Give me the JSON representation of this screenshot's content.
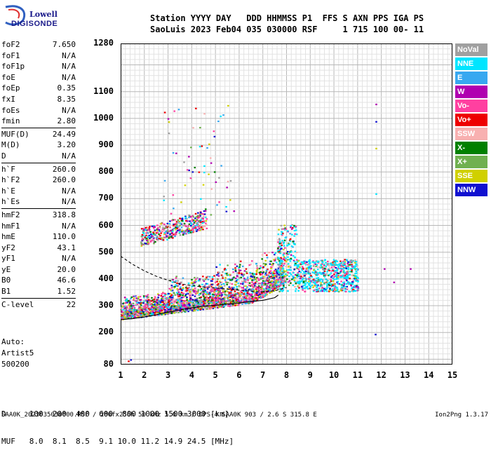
{
  "logo": {
    "top": "Lowell",
    "bottom": "DIGISONDE"
  },
  "header": {
    "line1": "Station YYYY DAY   DDD HHMMSS P1  FFS S AXN PPS IGA PS",
    "line2": "SaoLuis 2023 Feb04 035 030000 RSF     1 715 100 00- 11"
  },
  "params": [
    {
      "group": [
        {
          "k": "foF2",
          "v": "7.650"
        },
        {
          "k": "foF1",
          "v": "N/A"
        },
        {
          "k": "foF1p",
          "v": "N/A"
        },
        {
          "k": "foE",
          "v": "N/A"
        },
        {
          "k": "foEp",
          "v": "0.35"
        },
        {
          "k": "fxI",
          "v": "8.35"
        },
        {
          "k": "foEs",
          "v": "N/A"
        },
        {
          "k": "fmin",
          "v": "2.80"
        }
      ]
    },
    {
      "group": [
        {
          "k": "MUF(D)",
          "v": "24.49"
        },
        {
          "k": "M(D)",
          "v": "3.20"
        },
        {
          "k": "D",
          "v": "N/A"
        }
      ]
    },
    {
      "group": [
        {
          "k": "h`F",
          "v": "260.0"
        },
        {
          "k": "h`F2",
          "v": "260.0"
        },
        {
          "k": "h`E",
          "v": "N/A"
        },
        {
          "k": "h`Es",
          "v": "N/A"
        }
      ]
    },
    {
      "group": [
        {
          "k": "hmF2",
          "v": "318.8"
        },
        {
          "k": "hmF1",
          "v": "N/A"
        },
        {
          "k": "hmE",
          "v": "110.0"
        },
        {
          "k": "yF2",
          "v": "43.1"
        },
        {
          "k": "yF1",
          "v": "N/A"
        },
        {
          "k": "yE",
          "v": "20.0"
        },
        {
          "k": "B0",
          "v": "46.6"
        },
        {
          "k": "B1",
          "v": "1.52"
        }
      ]
    },
    {
      "group": [
        {
          "k": "C-level",
          "v": "22"
        }
      ]
    }
  ],
  "auto": {
    "l1": "Auto:",
    "l2": "Artist5",
    "l3": "500200"
  },
  "legend": [
    {
      "label": "NoVal",
      "color": "#a0a0a0"
    },
    {
      "label": "NNE",
      "color": "#00e5ff"
    },
    {
      "label": "E",
      "color": "#38a8f0"
    },
    {
      "label": "W",
      "color": "#b000b0"
    },
    {
      "label": "Vo-",
      "color": "#ff40a0"
    },
    {
      "label": "Vo+",
      "color": "#ee0000"
    },
    {
      "label": "SSW",
      "color": "#f8b0b0"
    },
    {
      "label": "X-",
      "color": "#008000"
    },
    {
      "label": "X+",
      "color": "#70b050"
    },
    {
      "label": "SSE",
      "color": "#d0d000"
    },
    {
      "label": "NNW",
      "color": "#1010d0"
    }
  ],
  "chart_data": {
    "type": "scatter",
    "title": "",
    "xlabel": "",
    "ylabel": "",
    "xlim": [
      1,
      15
    ],
    "ylim": [
      80,
      1280
    ],
    "x_ticks": [
      "1",
      "2",
      "3",
      "4",
      "5",
      "6",
      "7",
      "8",
      "9",
      "10",
      "11",
      "12",
      "13",
      "14",
      "15"
    ],
    "y_ticks": [
      "80",
      "200",
      "300",
      "400",
      "500",
      "600",
      "700",
      "800",
      "900",
      "1000",
      "1100",
      "1280"
    ],
    "traces": [
      {
        "name": "profile",
        "x": [
          1.0,
          1.5,
          2.0,
          2.5,
          3.0,
          3.5,
          4.0,
          4.5,
          5.0,
          5.5,
          6.0,
          6.5,
          7.0,
          7.5,
          7.65
        ],
        "y": [
          248,
          252,
          258,
          266,
          276,
          284,
          292,
          298,
          302,
          306,
          310,
          316,
          320,
          330,
          340
        ]
      },
      {
        "name": "trace",
        "x": [
          1.0,
          1.5,
          2.0,
          2.5,
          3.0,
          3.5,
          4.0,
          4.5,
          5.0,
          5.5,
          6.0,
          6.5,
          7.0,
          7.5,
          8.0
        ],
        "y": [
          485,
          455,
          430,
          410,
          395,
          382,
          375,
          370,
          366,
          362,
          358,
          354,
          352,
          356,
          368
        ]
      }
    ],
    "grid": true
  },
  "bottom": {
    "line1": "D     100  200  400  600  800 1000 1500 3000 [km]",
    "line2": "MUF   8.0  8.1  8.5  9.1 10.0 11.2 14.9 24.5 [MHz]"
  },
  "footer": {
    "left": "SAA0K_2023035030000.RSF / 280fx256h 50 kHz 5.0 km / DPS-4 SAA0K 903 / 2.6 S 315.8 E",
    "right": "Ion2Png 1.3.17"
  }
}
